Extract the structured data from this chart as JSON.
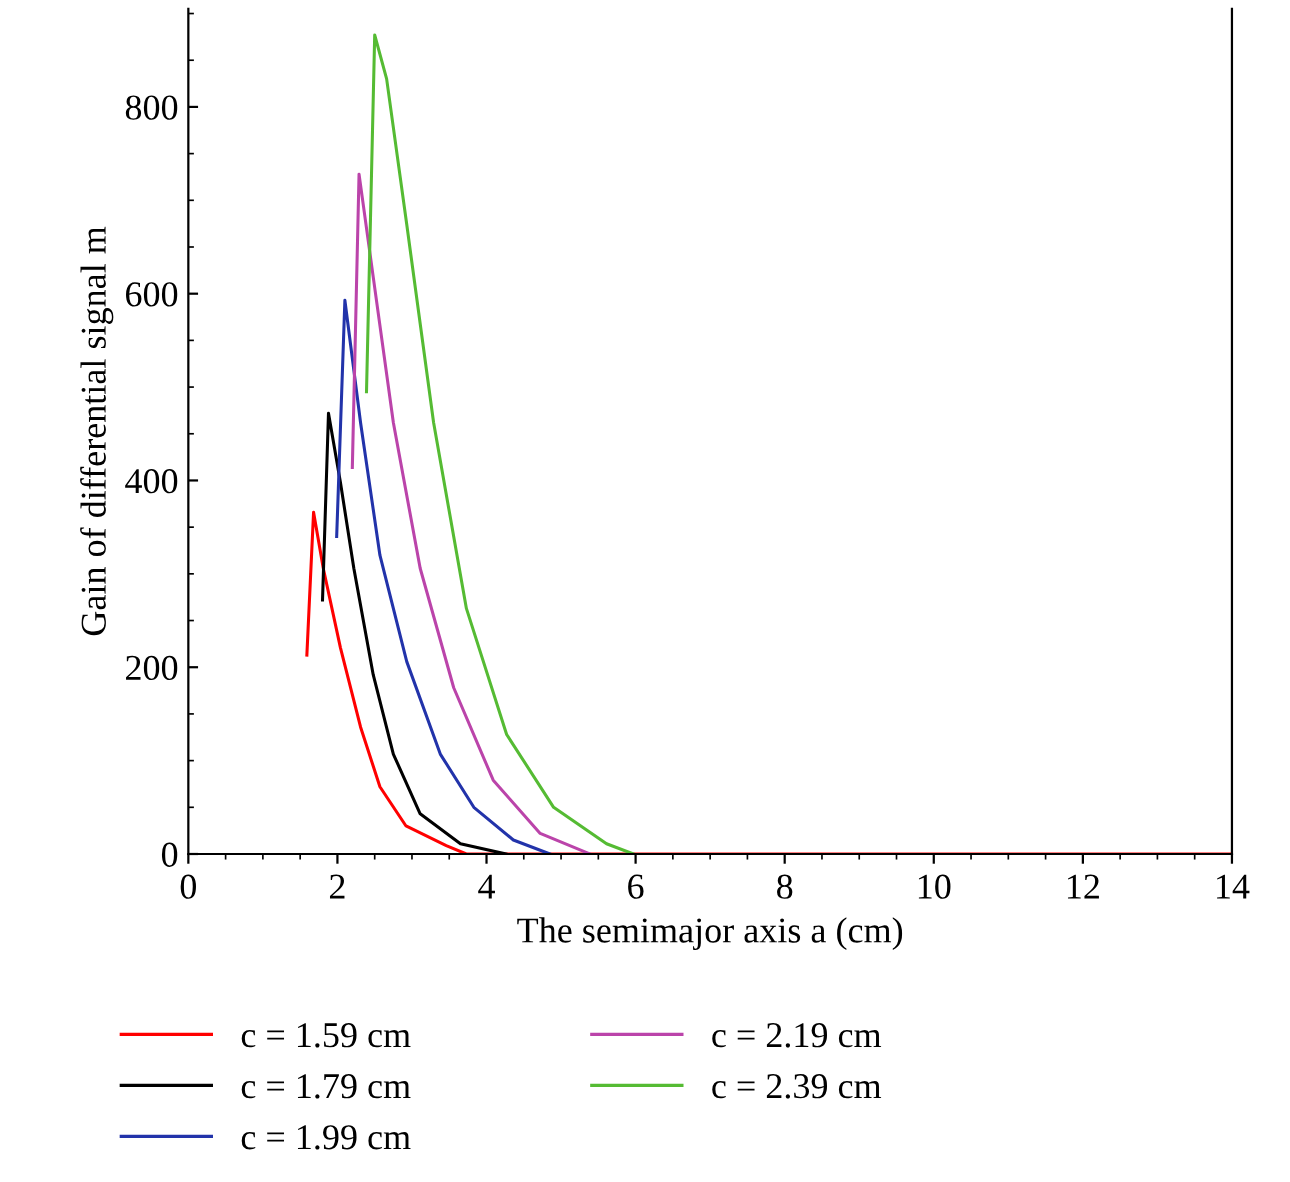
{
  "chart_data": {
    "type": "line",
    "xlabel": "The semimajor axis a (cm)",
    "ylabel": "Gain of differential signal m",
    "xlim": [
      0,
      14
    ],
    "xticks": [
      0,
      2,
      4,
      6,
      8,
      10,
      12,
      14
    ],
    "ylim": [
      0,
      905
    ],
    "yticks": [
      0,
      200,
      400,
      600,
      800
    ],
    "grid": false,
    "legend": "bottom",
    "marker": "none",
    "line_style": "solid",
    "series": [
      {
        "name": "c = 1.59 cm",
        "color": "#ff0000",
        "x": [
          1.59,
          1.68,
          1.81,
          2.04,
          2.31,
          2.57,
          2.92,
          3.46,
          3.73,
          14
        ],
        "values": [
          213,
          366,
          306,
          221,
          136,
          72,
          30,
          9,
          0,
          0
        ]
      },
      {
        "name": "c = 1.79 cm",
        "color": "#000000",
        "x": [
          1.8,
          1.88,
          2.04,
          2.22,
          2.48,
          2.75,
          3.11,
          3.65,
          4.26
        ],
        "values": [
          272,
          472,
          398,
          306,
          192,
          107,
          43,
          11,
          0
        ]
      },
      {
        "name": "c = 1.99 cm",
        "color": "#2233aa",
        "x": [
          1.99,
          2.1,
          2.31,
          2.57,
          2.93,
          3.38,
          3.83,
          4.36,
          4.85
        ],
        "values": [
          340,
          593,
          462,
          320,
          206,
          107,
          50,
          15,
          0
        ]
      },
      {
        "name": "c = 2.19 cm",
        "color": "#bb44aa",
        "x": [
          2.2,
          2.29,
          2.48,
          2.75,
          3.11,
          3.56,
          4.09,
          4.72,
          5.39
        ],
        "values": [
          414,
          728,
          618,
          462,
          306,
          178,
          79,
          22,
          0
        ]
      },
      {
        "name": "c = 2.39 cm",
        "color": "#55bb33",
        "x": [
          2.39,
          2.5,
          2.66,
          2.93,
          3.29,
          3.73,
          4.27,
          4.9,
          5.61,
          5.97
        ],
        "values": [
          495,
          877,
          830,
          674,
          462,
          263,
          128,
          50,
          11,
          0
        ]
      }
    ]
  }
}
